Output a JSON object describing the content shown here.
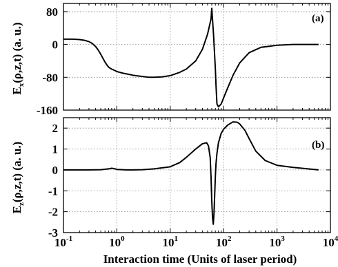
{
  "chart_data": [
    {
      "type": "line",
      "panel_label": "(a)",
      "ylabel_main": "E",
      "ylabel_sub": "x",
      "ylabel_rest": "(ρ,z,t) (a. u.)",
      "xscale": "log",
      "xlim": [
        0.1,
        10000
      ],
      "ylim": [
        -160,
        100
      ],
      "yticks": [
        80,
        0,
        -80,
        -160
      ],
      "grid": true,
      "series": [
        {
          "x": [
            0.1,
            0.15,
            0.2,
            0.25,
            0.3,
            0.35,
            0.4,
            0.45,
            0.5,
            0.55,
            0.6,
            0.65,
            0.7,
            0.75,
            0.8,
            0.9,
            1,
            1.3,
            1.7,
            2,
            3,
            4,
            5,
            7,
            10,
            15,
            20,
            30,
            40,
            50,
            58,
            60,
            65,
            70,
            72,
            75,
            80,
            90,
            100,
            120,
            150,
            200,
            300,
            500,
            1000,
            2000,
            3000,
            6000
          ],
          "y": [
            13,
            13,
            12,
            10,
            7,
            2,
            -5,
            -14,
            -24,
            -34,
            -43,
            -50,
            -55,
            -58,
            -60,
            -63,
            -66,
            -70,
            -73,
            -75,
            -78,
            -80,
            -80,
            -79,
            -76,
            -68,
            -60,
            -40,
            -12,
            25,
            62,
            88,
            20,
            -60,
            -100,
            -145,
            -152,
            -145,
            -130,
            -105,
            -75,
            -45,
            -20,
            -7,
            -2,
            0,
            0,
            0
          ]
        }
      ]
    },
    {
      "type": "line",
      "panel_label": "(b)",
      "xlabel": "Interaction time (Units of laser period)",
      "ylabel_main": "E",
      "ylabel_sub": "z",
      "ylabel_rest": "(ρ,z,t) (a. u.)",
      "xscale": "log",
      "xlim": [
        0.1,
        10000
      ],
      "xticks": [
        0.1,
        1,
        10,
        100,
        1000,
        10000
      ],
      "xtick_labels": [
        {
          "base": "10",
          "exp": "-1"
        },
        {
          "base": "10",
          "exp": "0"
        },
        {
          "base": "10",
          "exp": "1"
        },
        {
          "base": "10",
          "exp": "2"
        },
        {
          "base": "10",
          "exp": "3"
        },
        {
          "base": "10",
          "exp": "4"
        }
      ],
      "ylim": [
        -3,
        2.5
      ],
      "yticks": [
        2,
        1,
        0,
        -1,
        -2,
        -3
      ],
      "grid": true,
      "series": [
        {
          "x": [
            0.1,
            0.3,
            0.5,
            0.7,
            0.8,
            0.9,
            1,
            1.5,
            2,
            3,
            5,
            10,
            15,
            20,
            30,
            40,
            48,
            52,
            56,
            58,
            60,
            62,
            64,
            66,
            68,
            70,
            72,
            75,
            80,
            90,
            100,
            120,
            150,
            180,
            200,
            250,
            300,
            400,
            600,
            1000,
            2000,
            6000
          ],
          "y": [
            0,
            0,
            0.01,
            0.05,
            0.08,
            0.06,
            0.02,
            0,
            0,
            0.01,
            0.05,
            0.15,
            0.35,
            0.6,
            1.0,
            1.25,
            1.3,
            1.15,
            0.6,
            -0.3,
            -1.5,
            -2.3,
            -2.6,
            -2.1,
            -1.2,
            -0.3,
            0.3,
            0.8,
            1.3,
            1.75,
            1.95,
            2.15,
            2.3,
            2.28,
            2.2,
            1.9,
            1.5,
            0.9,
            0.45,
            0.22,
            0.12,
            0
          ]
        }
      ]
    }
  ]
}
